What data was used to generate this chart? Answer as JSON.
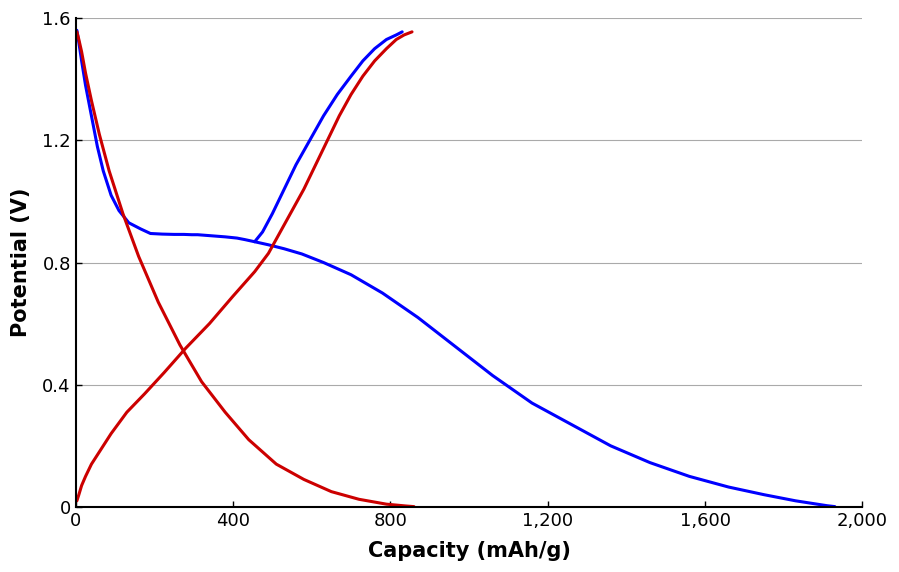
{
  "title": "",
  "xlabel": "Capacity (mAh/g)",
  "ylabel": "Potential (V)",
  "xlim": [
    0,
    2000
  ],
  "ylim": [
    0,
    1.6
  ],
  "xticks": [
    0,
    400,
    800,
    1200,
    1600,
    2000
  ],
  "yticks": [
    0,
    0.4,
    0.8,
    1.2,
    1.6
  ],
  "xtick_labels": [
    "0",
    "400",
    "800",
    "1,200",
    "1,600",
    "2,000"
  ],
  "ytick_labels": [
    "0",
    "0.4",
    "0.8",
    "1.2",
    "1.6"
  ],
  "blue_color": "#0000FF",
  "red_color": "#CC0000",
  "line_width": 2.2,
  "background_color": "#ffffff",
  "grid_color": "#aaaaaa",
  "blue_discharge1_cap": [
    3,
    8,
    15,
    25,
    40,
    55,
    70,
    90,
    110,
    135,
    165,
    190,
    220,
    250,
    275,
    295,
    310,
    320,
    330,
    340,
    350,
    360,
    370,
    380,
    395,
    410,
    430,
    455,
    490,
    530,
    575,
    630,
    700,
    780,
    870,
    960,
    1060,
    1160,
    1260,
    1360,
    1460,
    1560,
    1660,
    1750,
    1830,
    1880,
    1910,
    1930
  ],
  "blue_discharge1_pot": [
    1.56,
    1.52,
    1.46,
    1.38,
    1.28,
    1.18,
    1.1,
    1.02,
    0.97,
    0.93,
    0.91,
    0.895,
    0.893,
    0.892,
    0.892,
    0.891,
    0.891,
    0.89,
    0.889,
    0.888,
    0.887,
    0.886,
    0.885,
    0.884,
    0.882,
    0.88,
    0.875,
    0.868,
    0.858,
    0.845,
    0.828,
    0.8,
    0.76,
    0.7,
    0.62,
    0.53,
    0.43,
    0.34,
    0.27,
    0.2,
    0.145,
    0.1,
    0.065,
    0.04,
    0.02,
    0.01,
    0.004,
    0.001
  ],
  "blue_charge2_cap": [
    455,
    475,
    500,
    530,
    560,
    595,
    630,
    665,
    700,
    730,
    760,
    790,
    815,
    830
  ],
  "blue_charge2_pot": [
    0.868,
    0.9,
    0.96,
    1.04,
    1.12,
    1.2,
    1.28,
    1.35,
    1.41,
    1.46,
    1.5,
    1.53,
    1.545,
    1.555
  ],
  "red_discharge1_cap": [
    3,
    8,
    15,
    25,
    40,
    60,
    85,
    120,
    160,
    210,
    265,
    320,
    380,
    440,
    510,
    580,
    650,
    720,
    790,
    840,
    860
  ],
  "red_discharge1_pot": [
    1.555,
    1.53,
    1.49,
    1.42,
    1.33,
    1.22,
    1.1,
    0.96,
    0.82,
    0.67,
    0.53,
    0.41,
    0.31,
    0.22,
    0.14,
    0.09,
    0.05,
    0.025,
    0.009,
    0.003,
    0.001
  ],
  "red_charge2_cap": [
    3,
    8,
    15,
    25,
    40,
    60,
    90,
    130,
    175,
    225,
    280,
    340,
    400,
    455,
    490,
    520,
    550,
    580,
    610,
    640,
    670,
    700,
    730,
    760,
    790,
    815,
    835,
    855
  ],
  "red_charge2_pot": [
    0.02,
    0.04,
    0.07,
    0.1,
    0.14,
    0.18,
    0.24,
    0.31,
    0.37,
    0.44,
    0.52,
    0.6,
    0.69,
    0.77,
    0.83,
    0.9,
    0.97,
    1.04,
    1.12,
    1.2,
    1.28,
    1.35,
    1.41,
    1.46,
    1.5,
    1.53,
    1.545,
    1.555
  ]
}
